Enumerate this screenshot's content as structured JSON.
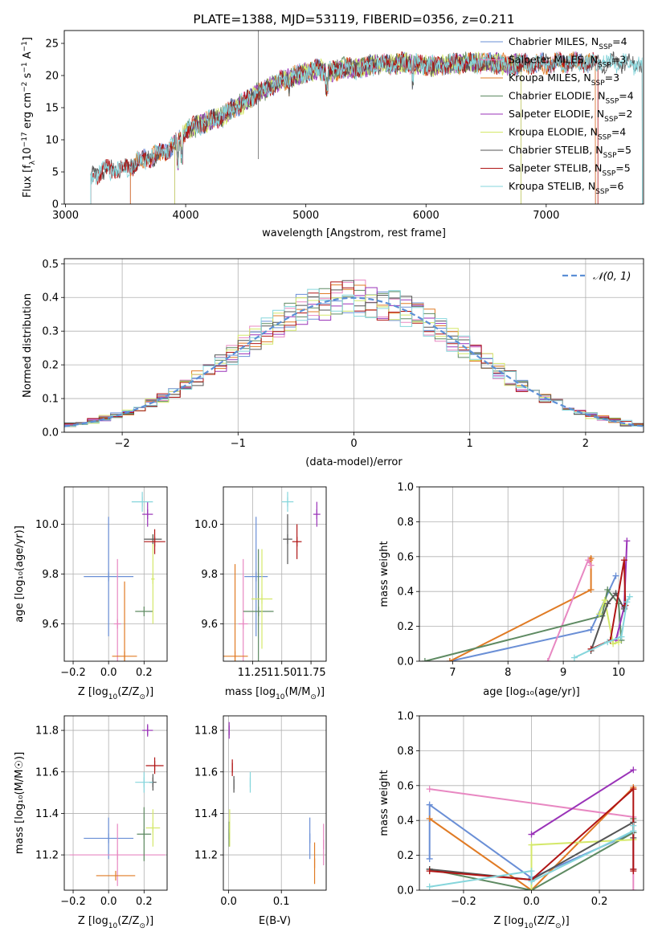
{
  "figure_title": "PLATE=1388, MJD=53119, FIBERID=0356, z=0.211",
  "colors": {
    "Chabrier MILES": "#6a8fd6",
    "Salpeter MILES": "#e888c2",
    "Kroupa MILES": "#e07b25",
    "Chabrier ELODIE": "#5e8a62",
    "Salpeter ELODIE": "#9a33b8",
    "Kroupa ELODIE": "#d4e86a",
    "Chabrier STELIB": "#555555",
    "Salpeter STELIB": "#b01515",
    "Kroupa STELIB": "#86d6dc"
  },
  "chart_data": [
    {
      "id": "spectrum",
      "type": "line",
      "title": "PLATE=1388, MJD=53119, FIBERID=0356, z=0.211",
      "xlabel": "wavelength [Angstrom, rest frame]",
      "ylabel_main": "Flux [f",
      "ylabel_lambda": "λ",
      "ylabel_exp": "10",
      "ylabel_exp_sup": "−17",
      "ylabel_units": " erg cm",
      "ylabel_units_sup1": "−2",
      "ylabel_s": " s",
      "ylabel_units_sup2": "−1",
      "ylabel_A": " A",
      "ylabel_units_sup3": "−1",
      "ylabel_end": "]",
      "xlim": [
        2990,
        7810
      ],
      "ylim": [
        0,
        27
      ],
      "xticks": [
        3000,
        4000,
        5000,
        6000,
        7000
      ],
      "yticks": [
        0,
        5,
        10,
        15,
        20,
        25
      ],
      "legend_loc": "upper right",
      "legend": [
        {
          "name": "Chabrier MILES, N",
          "sub": "SSP",
          "rest": "=4"
        },
        {
          "name": "Salpeter MILES, N",
          "sub": "SSP",
          "rest": "=3"
        },
        {
          "name": "Kroupa MILES, N",
          "sub": "SSP",
          "rest": "=3"
        },
        {
          "name": "Chabrier ELODIE, N",
          "sub": "SSP",
          "rest": "=4"
        },
        {
          "name": "Salpeter ELODIE, N",
          "sub": "SSP",
          "rest": "=2"
        },
        {
          "name": "Kroupa ELODIE, N",
          "sub": "SSP",
          "rest": "=4"
        },
        {
          "name": "Chabrier STELIB, N",
          "sub": "SSP",
          "rest": "=5"
        },
        {
          "name": "Salpeter STELIB, N",
          "sub": "SSP",
          "rest": "=5"
        },
        {
          "name": "Kroupa STELIB, N",
          "sub": "SSP",
          "rest": "=6"
        }
      ],
      "legend_keys": [
        "Chabrier MILES",
        "Salpeter MILES",
        "Kroupa MILES",
        "Chabrier ELODIE",
        "Salpeter ELODIE",
        "Kroupa ELODIE",
        "Chabrier STELIB",
        "Salpeter STELIB",
        "Kroupa STELIB"
      ],
      "continuum_x": [
        3210,
        3300,
        3500,
        3600,
        3700,
        3800,
        3880,
        3950,
        4000,
        4100,
        4200,
        4300,
        4400,
        4500,
        4600,
        4700,
        4800,
        4900,
        5000,
        5100,
        5200,
        5300,
        5400,
        5500,
        5600,
        5700,
        5800,
        5900,
        6000,
        6100,
        6200,
        6300,
        6400,
        6500,
        6600,
        6700,
        6800,
        6900,
        7000,
        7100,
        7200,
        7300,
        7400,
        7500,
        7600,
        7700
      ],
      "continuum_y": [
        4.2,
        5.2,
        5.5,
        6.5,
        7.2,
        8.0,
        8.8,
        10.0,
        11.5,
        12.2,
        13.0,
        13.5,
        15.0,
        16.0,
        17.3,
        18.2,
        19.2,
        19.8,
        20.5,
        21.0,
        20.5,
        21.2,
        21.0,
        21.4,
        21.8,
        21.6,
        22.0,
        21.9,
        21.6,
        21.4,
        21.8,
        21.9,
        22.0,
        21.9,
        21.9,
        21.6,
        21.8,
        21.8,
        21.8,
        22.0,
        22.0,
        22.0,
        21.9,
        22.0,
        22.0,
        21.8
      ],
      "model_starts": {
        "Chabrier MILES": 3540,
        "Salpeter MILES": 3540,
        "Kroupa MILES": 3540,
        "Chabrier ELODIE": 3910,
        "Salpeter ELODIE": 3910,
        "Kroupa ELODIE": 3910,
        "Chabrier STELIB": 3210,
        "Salpeter STELIB": 3210,
        "Kroupa STELIB": 3210
      },
      "model_ends": {
        "Chabrier MILES": 7410,
        "Salpeter MILES": 7410,
        "Kroupa MILES": 7410,
        "Chabrier ELODIE": 6790,
        "Salpeter ELODIE": 6790,
        "Kroupa ELODIE": 6790,
        "Chabrier STELIB": 7800,
        "Salpeter STELIB": 7430,
        "Kroupa STELIB": 7800
      }
    },
    {
      "id": "residual_hist",
      "type": "line",
      "xlabel": "(data-model)/error",
      "ylabel": "Normed distribution",
      "xlim": [
        -2.5,
        2.5
      ],
      "ylim": [
        0,
        0.515
      ],
      "xticks": [
        -2,
        -1,
        0,
        1,
        2
      ],
      "xtick_labels": [
        "−2",
        "−1",
        "0",
        "1",
        "2"
      ],
      "yticks": [
        0.0,
        0.1,
        0.2,
        0.3,
        0.4,
        0.5
      ],
      "ytick_labels": [
        "0.0",
        "0.1",
        "0.2",
        "0.3",
        "0.4",
        "0.5"
      ],
      "grid": true,
      "legend_loc": "upper right",
      "gauss_label": "𝒩(0, 1)",
      "bin_width": 0.1
    },
    {
      "id": "Z_age",
      "type": "scatter",
      "xlabel_main": "Z [log",
      "xlabel_sub": "10",
      "xlabel_tail": "(Z/Z",
      "xlabel_end": ")]",
      "ylabel": "age  [log₁₀(age/yr)]",
      "xlim": [
        -0.25,
        0.33
      ],
      "ylim": [
        9.45,
        10.15
      ],
      "xticks": [
        -0.2,
        0.0,
        0.2
      ],
      "xtick_labels": [
        "−0.2",
        "0.0",
        "0.2"
      ],
      "yticks": [
        9.6,
        9.8,
        10.0
      ],
      "ytick_labels": [
        "9.6",
        "9.8",
        "10.0"
      ],
      "grid": true,
      "points": [
        {
          "model": "Chabrier MILES",
          "x": 0.0,
          "xerr": 0.14,
          "y": 9.79,
          "yerr": 0.24
        },
        {
          "model": "Salpeter MILES",
          "x": 0.05,
          "xerr": 0.02,
          "y": 9.6,
          "yerr": 0.26
        },
        {
          "model": "Kroupa MILES",
          "x": 0.09,
          "xerr": 0.07,
          "y": 9.47,
          "yerr": 0.3
        },
        {
          "model": "Chabrier ELODIE",
          "x": 0.2,
          "xerr": 0.05,
          "y": 9.65,
          "yerr": 0.0
        },
        {
          "model": "Salpeter ELODIE",
          "x": 0.22,
          "xerr": 0.03,
          "y": 10.04,
          "yerr": 0.05
        },
        {
          "model": "Kroupa ELODIE",
          "x": 0.25,
          "xerr": 0.01,
          "y": 9.78,
          "yerr": 0.18
        },
        {
          "model": "Chabrier STELIB",
          "x": 0.25,
          "xerr": 0.05,
          "y": 9.94,
          "yerr": 0.0
        },
        {
          "model": "Salpeter STELIB",
          "x": 0.26,
          "xerr": 0.06,
          "y": 9.93,
          "yerr": 0.05
        },
        {
          "model": "Kroupa STELIB",
          "x": 0.19,
          "xerr": 0.06,
          "y": 10.09,
          "yerr": 0.04
        }
      ]
    },
    {
      "id": "mass_age",
      "type": "scatter",
      "xlabel_main": "mass [log",
      "xlabel_sub": "10",
      "xlabel_tail": "(M/M",
      "xlabel_end": ")]",
      "ylabel": "",
      "xlim": [
        11.0,
        11.88
      ],
      "ylim": [
        9.45,
        10.15
      ],
      "xticks": [
        11.25,
        11.5,
        11.75
      ],
      "xtick_labels": [
        "11.25",
        "11.50",
        "11.75"
      ],
      "yticks": [
        9.6,
        9.8,
        10.0
      ],
      "ytick_labels": [
        "9.6",
        "9.8",
        "10.0"
      ],
      "grid": true,
      "points": [
        {
          "model": "Chabrier MILES",
          "x": 11.28,
          "xerr": 0.1,
          "y": 9.79,
          "yerr": 0.24
        },
        {
          "model": "Salpeter MILES",
          "x": 11.17,
          "xerr": 0.04,
          "y": 9.6,
          "yerr": 0.26
        },
        {
          "model": "Kroupa MILES",
          "x": 11.1,
          "xerr": 0.11,
          "y": 9.47,
          "yerr": 0.37
        },
        {
          "model": "Chabrier ELODIE",
          "x": 11.3,
          "xerr": 0.13,
          "y": 9.65,
          "yerr": 0.25
        },
        {
          "model": "Salpeter ELODIE",
          "x": 11.8,
          "xerr": 0.03,
          "y": 10.04,
          "yerr": 0.05
        },
        {
          "model": "Kroupa ELODIE",
          "x": 11.33,
          "xerr": 0.09,
          "y": 9.7,
          "yerr": 0.2
        },
        {
          "model": "Chabrier STELIB",
          "x": 11.55,
          "xerr": 0.04,
          "y": 9.94,
          "yerr": 0.1
        },
        {
          "model": "Salpeter STELIB",
          "x": 11.63,
          "xerr": 0.04,
          "y": 9.93,
          "yerr": 0.07
        },
        {
          "model": "Kroupa STELIB",
          "x": 11.55,
          "xerr": 0.05,
          "y": 10.09,
          "yerr": 0.04
        }
      ]
    },
    {
      "id": "age_weight",
      "type": "line",
      "xlabel": "age  [log₁₀(age/yr)]",
      "ylabel": "mass weight",
      "xlim": [
        6.4,
        10.45
      ],
      "ylim": [
        0,
        1.0
      ],
      "xticks": [
        7,
        8,
        9,
        10
      ],
      "xtick_labels": [
        "7",
        "8",
        "9",
        "10"
      ],
      "yticks": [
        0.0,
        0.2,
        0.4,
        0.6,
        0.8,
        1.0
      ],
      "ytick_labels": [
        "0.0",
        "0.2",
        "0.4",
        "0.6",
        "0.8",
        "1.0"
      ],
      "grid": true,
      "series": [
        {
          "model": "Chabrier MILES",
          "x": [
            6.95,
            9.5,
            9.95
          ],
          "y": [
            0.0,
            0.18,
            0.49
          ]
        },
        {
          "model": "Kroupa MILES",
          "x": [
            6.95,
            9.5,
            9.5,
            9.48
          ],
          "y": [
            0.0,
            0.41,
            0.59,
            0.58
          ]
        },
        {
          "model": "Salpeter MILES",
          "x": [
            8.72,
            9.45,
            9.5
          ],
          "y": [
            0.0,
            0.58,
            0.55
          ]
        },
        {
          "model": "Chabrier ELODIE",
          "x": [
            6.5,
            9.7,
            9.8,
            10.0,
            10.05
          ],
          "y": [
            0.0,
            0.26,
            0.41,
            0.33,
            0.12
          ]
        },
        {
          "model": "Salpeter ELODIE",
          "x": [
            9.95,
            10.1,
            10.15
          ],
          "y": [
            0.12,
            0.31,
            0.69
          ]
        },
        {
          "model": "Kroupa ELODIE",
          "x": [
            9.65,
            9.75,
            9.9,
            10.0
          ],
          "y": [
            0.27,
            0.35,
            0.1,
            0.11
          ]
        },
        {
          "model": "Chabrier STELIB",
          "x": [
            9.5,
            9.8,
            9.95,
            10.1
          ],
          "y": [
            0.06,
            0.33,
            0.39,
            0.3
          ]
        },
        {
          "model": "Salpeter STELIB",
          "x": [
            9.5,
            9.85,
            10.1,
            10.12
          ],
          "y": [
            0.07,
            0.12,
            0.58,
            0.32
          ]
        },
        {
          "model": "Kroupa STELIB",
          "x": [
            9.2,
            9.8,
            10.05,
            10.15,
            10.2
          ],
          "y": [
            0.02,
            0.11,
            0.14,
            0.34,
            0.37
          ]
        }
      ]
    },
    {
      "id": "Z_mass",
      "type": "scatter",
      "xlabel_main": "Z [log",
      "xlabel_sub": "10",
      "xlabel_tail": "(Z/Z",
      "xlabel_end": ")]",
      "ylabel": "mass [log₁₀(M/M☉)]",
      "xlim": [
        -0.25,
        0.33
      ],
      "ylim": [
        11.03,
        11.87
      ],
      "xticks": [
        -0.2,
        0.0,
        0.2
      ],
      "xtick_labels": [
        "−0.2",
        "0.0",
        "0.2"
      ],
      "yticks": [
        11.2,
        11.4,
        11.6,
        11.8
      ],
      "ytick_labels": [
        "11.2",
        "11.4",
        "11.6",
        "11.8"
      ],
      "grid": true,
      "points": [
        {
          "model": "Chabrier MILES",
          "x": 0.0,
          "xerr": 0.14,
          "y": 11.28,
          "yerr": 0.1
        },
        {
          "model": "Salpeter MILES",
          "x": 0.05,
          "xerr": 0.27,
          "y": 11.2,
          "yerr": 0.15
        },
        {
          "model": "Kroupa MILES",
          "x": 0.04,
          "xerr": 0.11,
          "y": 11.1,
          "yerr": 0.0
        },
        {
          "model": "Chabrier ELODIE",
          "x": 0.2,
          "xerr": 0.04,
          "y": 11.3,
          "yerr": 0.13
        },
        {
          "model": "Salpeter ELODIE",
          "x": 0.22,
          "xerr": 0.03,
          "y": 11.8,
          "yerr": 0.03
        },
        {
          "model": "Kroupa ELODIE",
          "x": 0.25,
          "xerr": 0.04,
          "y": 11.33,
          "yerr": 0.09
        },
        {
          "model": "Chabrier STELIB",
          "x": 0.25,
          "xerr": 0.02,
          "y": 11.55,
          "yerr": 0.04
        },
        {
          "model": "Salpeter STELIB",
          "x": 0.26,
          "xerr": 0.05,
          "y": 11.63,
          "yerr": 0.04
        },
        {
          "model": "Kroupa STELIB",
          "x": 0.2,
          "xerr": 0.05,
          "y": 11.55,
          "yerr": 0.05
        }
      ]
    },
    {
      "id": "EBV_mass",
      "type": "scatter",
      "xlabel": "E(B-V)",
      "ylabel": "",
      "xlim": [
        -0.01,
        0.185
      ],
      "ylim": [
        11.03,
        11.87
      ],
      "xticks": [
        0.0,
        0.1
      ],
      "xtick_labels": [
        "0.0",
        "0.1"
      ],
      "yticks": [
        11.2,
        11.4,
        11.6,
        11.8
      ],
      "ytick_labels": [
        "11.2",
        "11.4",
        "11.6",
        "11.8"
      ],
      "grid": true,
      "points": [
        {
          "model": "Chabrier MILES",
          "x": 0.154,
          "y": 11.28,
          "yerr": 0.1
        },
        {
          "model": "Salpeter MILES",
          "x": 0.18,
          "y": 11.25,
          "yerr": 0.1
        },
        {
          "model": "Kroupa MILES",
          "x": 0.163,
          "y": 11.16,
          "yerr": 0.1
        },
        {
          "model": "Chabrier ELODIE",
          "x": 0.001,
          "y": 11.3,
          "yerr": 0.06
        },
        {
          "model": "Salpeter ELODIE",
          "x": 0.001,
          "y": 11.8,
          "yerr": 0.04
        },
        {
          "model": "Kroupa ELODIE",
          "x": 0.002,
          "y": 11.33,
          "yerr": 0.09
        },
        {
          "model": "Chabrier STELIB",
          "x": 0.01,
          "y": 11.54,
          "yerr": 0.04
        },
        {
          "model": "Salpeter STELIB",
          "x": 0.007,
          "y": 11.62,
          "yerr": 0.04
        },
        {
          "model": "Kroupa STELIB",
          "x": 0.041,
          "y": 11.55,
          "yerr": 0.05
        }
      ]
    },
    {
      "id": "Z_weight",
      "type": "line",
      "xlabel_main": "Z [log",
      "xlabel_sub": "10",
      "xlabel_tail": "(Z/Z",
      "xlabel_end": ")]",
      "ylabel": "mass weight",
      "xlim": [
        -0.33,
        0.33
      ],
      "ylim": [
        0,
        1.0
      ],
      "xticks": [
        -0.2,
        0.0,
        0.2
      ],
      "xtick_labels": [
        "−0.2",
        "0.0",
        "0.2"
      ],
      "yticks": [
        0.0,
        0.2,
        0.4,
        0.6,
        0.8,
        1.0
      ],
      "ytick_labels": [
        "0.0",
        "0.2",
        "0.4",
        "0.6",
        "0.8",
        "1.0"
      ],
      "grid": true,
      "series": [
        {
          "model": "Chabrier MILES",
          "x": [
            -0.3,
            -0.3,
            0.0,
            0.3,
            0.3
          ],
          "y": [
            0.18,
            0.49,
            0.07,
            0.33,
            0.12
          ]
        },
        {
          "model": "Salpeter MILES",
          "x": [
            -0.3,
            0.3,
            0.3
          ],
          "y": [
            0.58,
            0.42,
            0.0
          ]
        },
        {
          "model": "Kroupa MILES",
          "x": [
            -0.3,
            0.0,
            0.3,
            0.3
          ],
          "y": [
            0.41,
            0.0,
            0.59,
            0.58
          ]
        },
        {
          "model": "Chabrier ELODIE",
          "x": [
            -0.3,
            0.0,
            0.3,
            0.3
          ],
          "y": [
            0.12,
            0.0,
            0.33,
            0.41
          ]
        },
        {
          "model": "Salpeter ELODIE",
          "x": [
            0.0,
            0.3
          ],
          "y": [
            0.32,
            0.69
          ]
        },
        {
          "model": "Kroupa ELODIE",
          "x": [
            0.0,
            0.0,
            0.3
          ],
          "y": [
            0.0,
            0.26,
            0.29
          ]
        },
        {
          "model": "Chabrier STELIB",
          "x": [
            -0.3,
            0.0,
            0.0,
            0.3,
            0.3
          ],
          "y": [
            0.12,
            0.06,
            0.06,
            0.39,
            0.3
          ]
        },
        {
          "model": "Salpeter STELIB",
          "x": [
            -0.3,
            0.0,
            0.3,
            0.3,
            0.3
          ],
          "y": [
            0.11,
            0.06,
            0.58,
            0.12,
            0.11
          ]
        },
        {
          "model": "Kroupa STELIB",
          "x": [
            -0.3,
            0.0,
            0.0,
            0.3,
            0.3
          ],
          "y": [
            0.02,
            0.11,
            0.05,
            0.34,
            0.37
          ]
        }
      ]
    }
  ]
}
